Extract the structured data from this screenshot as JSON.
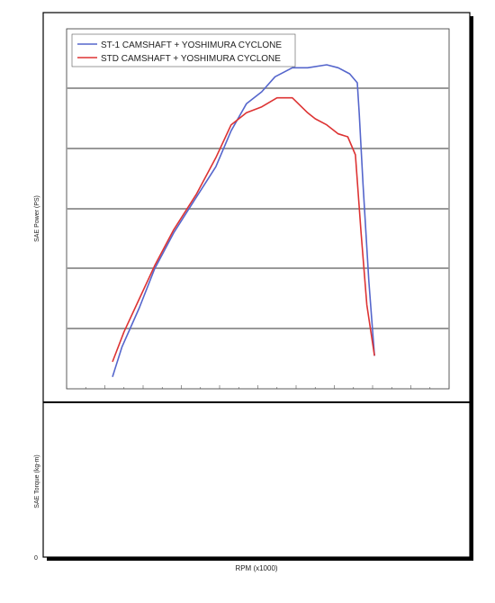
{
  "chart_data": {
    "type": "line",
    "xlabel": "RPM (x1000)",
    "ylabel_power": "SAE Power (PS)",
    "ylabel_torque": "SAE Torque (kg-m)",
    "torque_zero_label": "0",
    "grid": true,
    "legend_position": "top-left",
    "colors": {
      "st1": "#5566cc",
      "std": "#dd3333"
    },
    "series": [
      {
        "name": "ST-1 CAMSHAFT + YOSHIMURA CYCLONE",
        "color_key": "st1",
        "x": [
          3.7,
          3.95,
          4.4,
          4.8,
          5.3,
          5.8,
          6.4,
          6.8,
          7.2,
          7.6,
          7.95,
          8.4,
          8.8,
          9.3,
          9.6,
          9.9,
          10.1,
          10.15,
          10.25,
          10.4,
          10.55
        ],
        "y": [
          0.2,
          0.7,
          1.35,
          2.0,
          2.6,
          3.1,
          3.7,
          4.3,
          4.75,
          4.95,
          5.2,
          5.35,
          5.35,
          5.4,
          5.35,
          5.25,
          5.1,
          4.6,
          3.4,
          1.8,
          0.55
        ]
      },
      {
        "name": "STD CAMSHAFT + YOSHIMURA CYCLONE",
        "color_key": "std",
        "x": [
          3.7,
          4.0,
          4.4,
          4.8,
          5.3,
          5.9,
          6.4,
          6.8,
          7.2,
          7.6,
          8.0,
          8.4,
          8.8,
          9.0,
          9.3,
          9.6,
          9.85,
          10.05,
          10.2,
          10.35,
          10.55
        ],
        "y": [
          0.45,
          0.95,
          1.5,
          2.05,
          2.65,
          3.25,
          3.85,
          4.4,
          4.6,
          4.7,
          4.85,
          4.85,
          4.6,
          4.5,
          4.4,
          4.25,
          4.2,
          3.9,
          2.6,
          1.4,
          0.55
        ]
      }
    ]
  }
}
